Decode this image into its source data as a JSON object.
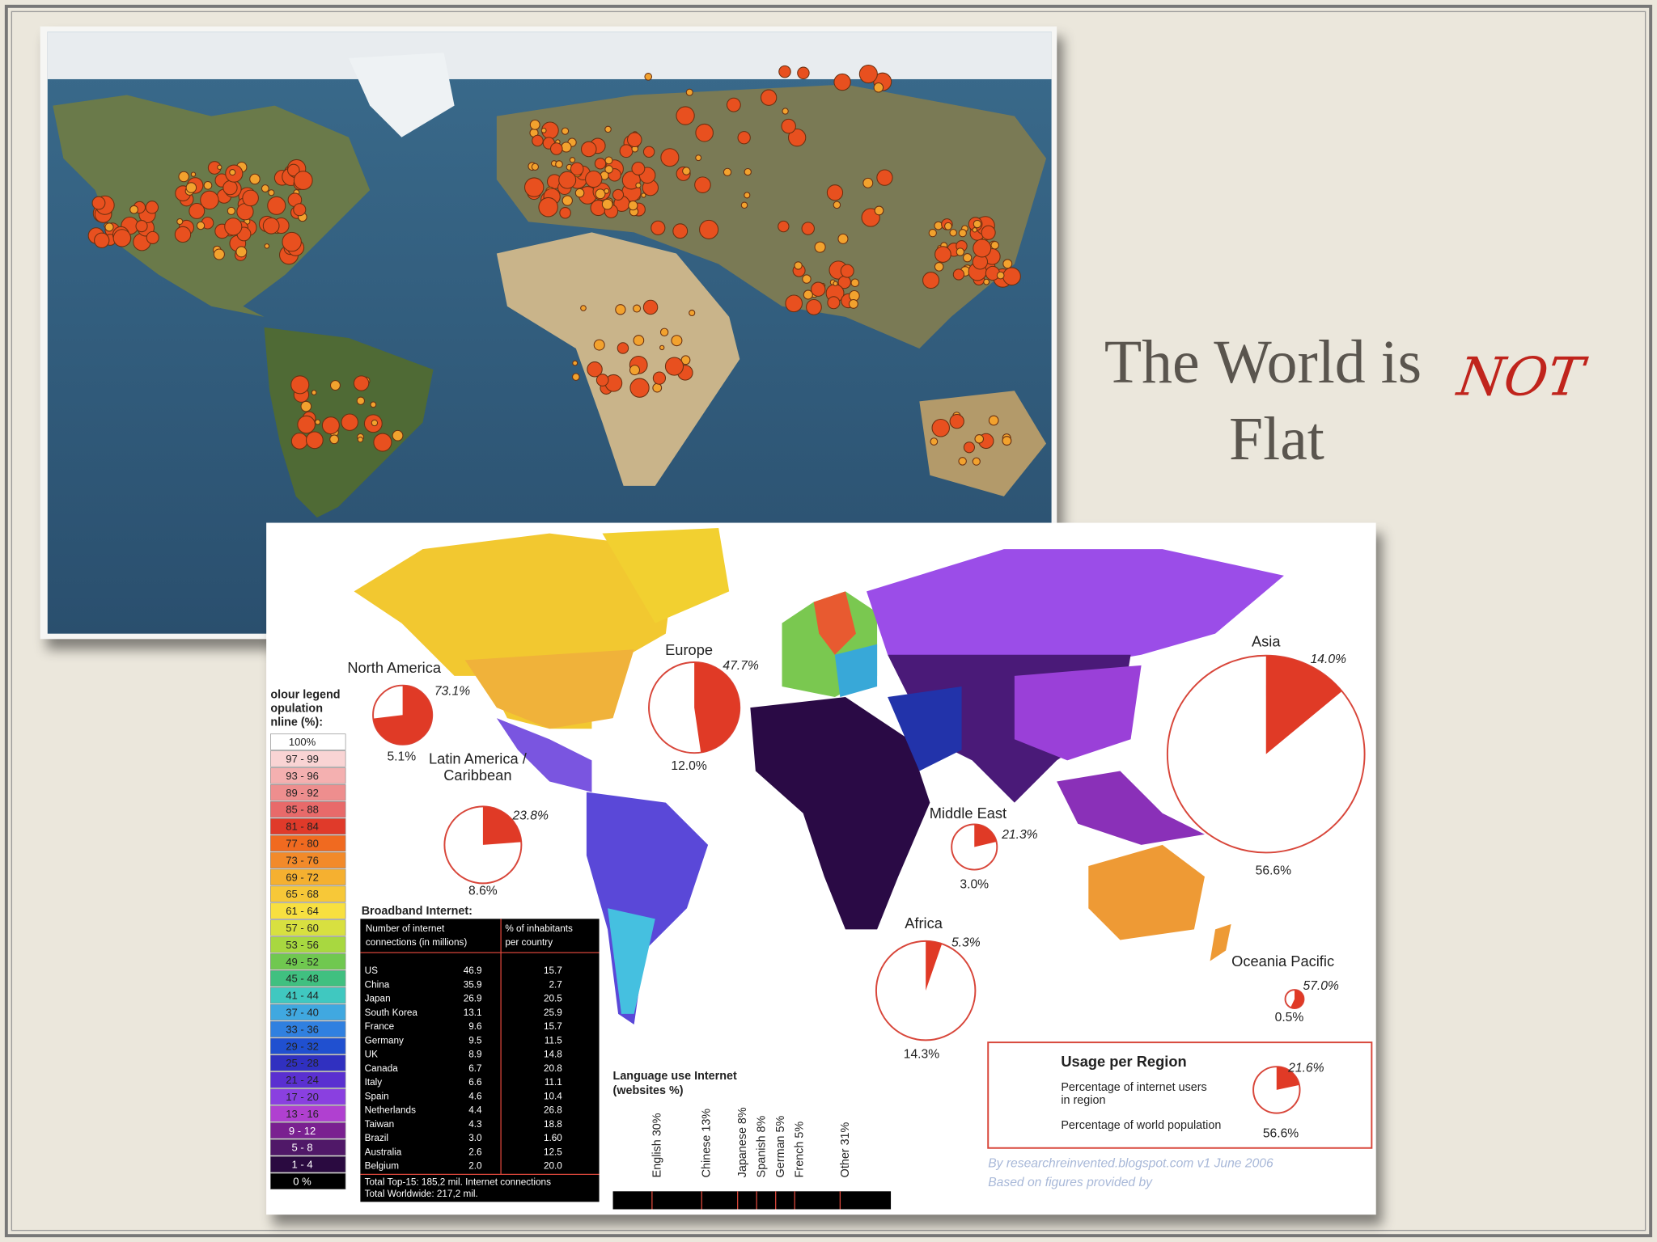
{
  "title": {
    "line1": "The World is",
    "emphasis": "NOT",
    "line2": "Flat"
  },
  "infographic": {
    "regions": [
      {
        "name": [
          "North America"
        ],
        "internet_users": {
          "value": 73.1,
          "label": "73.1%"
        },
        "population": {
          "value": 5.1,
          "label": "5.1%"
        }
      },
      {
        "name": [
          "Europe"
        ],
        "internet_users": {
          "value": 47.7,
          "label": "47.7%"
        },
        "population": {
          "value": 12.0,
          "label": "12.0%"
        }
      },
      {
        "name": [
          "Latin America /",
          "Caribbean"
        ],
        "internet_users": {
          "value": 23.8,
          "label": "23.8%"
        },
        "population": {
          "value": 8.6,
          "label": "8.6%"
        }
      },
      {
        "name": [
          "Middle East"
        ],
        "internet_users": {
          "value": 21.3,
          "label": "21.3%"
        },
        "population": {
          "value": 3.0,
          "label": "3.0%"
        }
      },
      {
        "name": [
          "Asia"
        ],
        "internet_users": {
          "value": 14.0,
          "label": "14.0%"
        },
        "population": {
          "value": 56.6,
          "label": "56.6%"
        }
      },
      {
        "name": [
          "Africa"
        ],
        "internet_users": {
          "value": 5.3,
          "label": "5.3%"
        },
        "population": {
          "value": 14.3,
          "label": "14.3%"
        }
      },
      {
        "name": [
          "Oceania Pacific"
        ],
        "internet_users": {
          "value": 57.0,
          "label": "57.0%"
        },
        "population": {
          "value": 0.5,
          "label": "0.5%"
        }
      }
    ],
    "legend": {
      "title": [
        "olour legend",
        "opulation",
        "nline (%):"
      ],
      "items": [
        "100%",
        "97 - 99",
        "93 - 96",
        "89 - 92",
        "85 - 88",
        "81 - 84",
        "77 - 80",
        "73 - 76",
        "69 - 72",
        "65 - 68",
        "61 - 64",
        "57 - 60",
        "53 - 56",
        "49 - 52",
        "45 - 48",
        "41 - 44",
        "37 - 40",
        "33 - 36",
        "29 - 32",
        "25 - 28",
        "21 - 24",
        "17 - 20",
        "13 - 16",
        "9 - 12",
        "5 - 8",
        "1 - 4",
        "0 %"
      ]
    },
    "broadband": {
      "title": "Broadband Internet:",
      "headers": [
        [
          "Number of internet",
          "connections (in millions)"
        ],
        [
          "% of inhabitants",
          "per country"
        ]
      ],
      "rows": [
        [
          "US",
          "46.9",
          "15.7"
        ],
        [
          "China",
          "35.9",
          "2.7"
        ],
        [
          "Japan",
          "26.9",
          "20.5"
        ],
        [
          "South Korea",
          "13.1",
          "25.9"
        ],
        [
          "France",
          "9.6",
          "15.7"
        ],
        [
          "Germany",
          "9.5",
          "11.5"
        ],
        [
          "UK",
          "8.9",
          "14.8"
        ],
        [
          "Canada",
          "6.7",
          "20.8"
        ],
        [
          "Italy",
          "6.6",
          "11.1"
        ],
        [
          "Spain",
          "4.6",
          "10.4"
        ],
        [
          "Netherlands",
          "4.4",
          "26.8"
        ],
        [
          "Taiwan",
          "4.3",
          "18.8"
        ],
        [
          "Brazil",
          "3.0",
          "1.60"
        ],
        [
          "Australia",
          "2.6",
          "12.5"
        ],
        [
          "Belgium",
          "2.0",
          "20.0"
        ]
      ],
      "footer": [
        "Total Top-15: 185,2 mil. Internet connections",
        "Total Worldwide: 217,2 mil."
      ]
    },
    "languages": {
      "title": [
        "Language use Internet",
        "(websites %)"
      ],
      "items": [
        "English 30%",
        "Chinese 13%",
        "Japanese 8%",
        "Spanish 8%",
        "German 5%",
        "French 5%",
        "Other 31%"
      ]
    },
    "usage_box": {
      "title": "Usage per Region",
      "users_text": [
        "Percentage of internet users",
        "in region"
      ],
      "population_text": "Percentage of world population",
      "internet_users": {
        "value": 21.6,
        "label": "21.6%"
      },
      "population": {
        "value": 56.6,
        "label": "56.6%"
      }
    },
    "credits": [
      "By researchreinvented.blogspot.com v1 June 2006",
      "Based on figures provided by"
    ]
  }
}
